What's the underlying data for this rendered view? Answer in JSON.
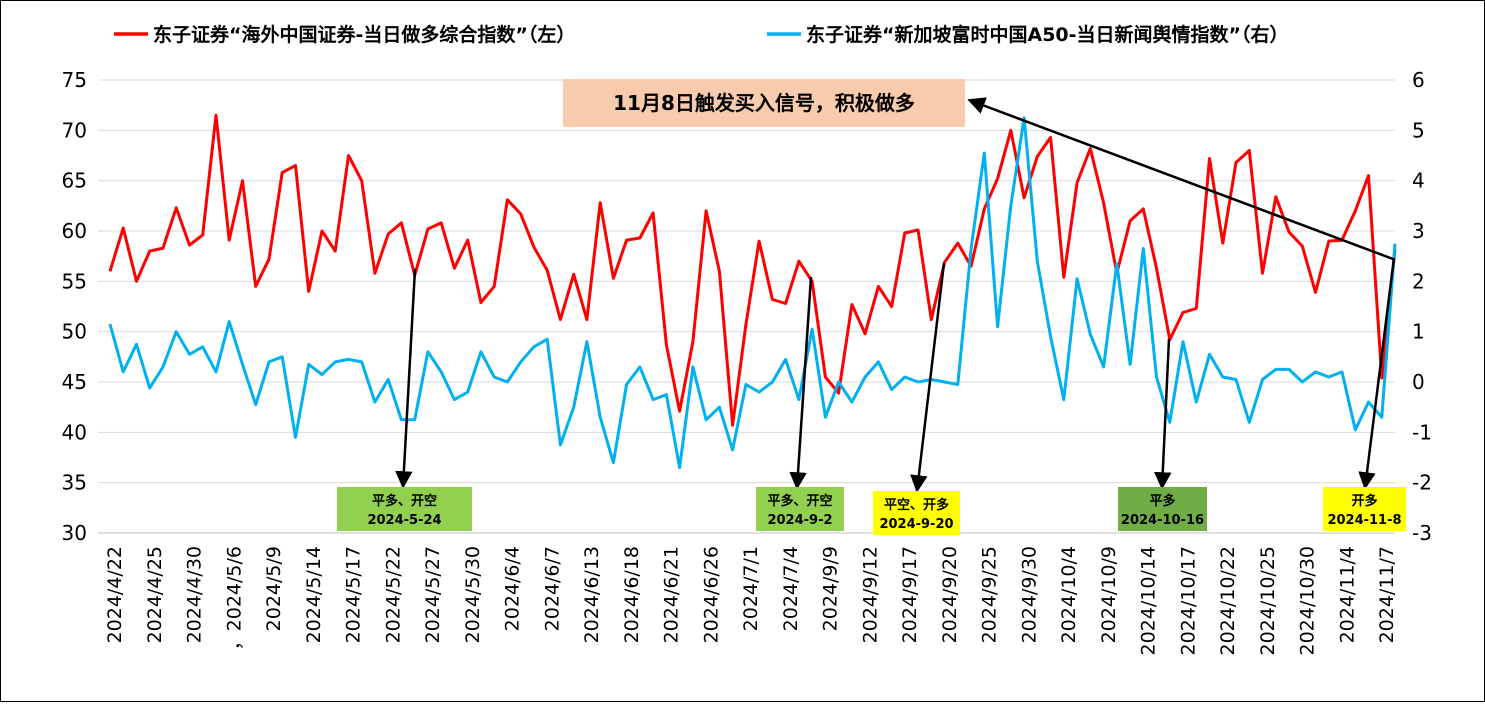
{
  "chart_data": {
    "type": "line",
    "legend": {
      "placement": "top",
      "items": [
        {
          "label": "东子证券“海外中国证券-当日做多综合指数”（左）",
          "color": "#ff0000"
        },
        {
          "label": "东子证券“新加坡富时中国A50-当日新闻舆情指数”（右）",
          "color": "#00b0f0"
        }
      ]
    },
    "x_ticks": [
      "2024/4/22",
      "2024/4/25",
      "2024/4/30",
      "，2024/5/6",
      "2024/5/9",
      "2024/5/14",
      "2024/5/17",
      "2024/5/22",
      "2024/5/27",
      "2024/5/30",
      "2024/6/4",
      "2024/6/7",
      "2024/6/13",
      "2024/6/18",
      "2024/6/21",
      "2024/6/26",
      "2024/7/1",
      "2024/7/4",
      "2024/9/9",
      "2024/9/12",
      "2024/9/17",
      "2024/9/20",
      "2024/9/25",
      "2024/9/30",
      "2024/10/4",
      "2024/10/9",
      "2024/10/14",
      "2024/10/17",
      "2024/10/22",
      "2024/10/25",
      "2024/10/30",
      "2024/11/4",
      "2024/11/7"
    ],
    "y_left": {
      "min": 30,
      "max": 75,
      "ticks": [
        "30",
        "35",
        "40",
        "45",
        "50",
        "55",
        "60",
        "65",
        "70",
        "75"
      ]
    },
    "y_right": {
      "min": -3,
      "max": 6,
      "ticks": [
        "-3",
        "-2",
        "-1",
        "0",
        "1",
        "2",
        "3",
        "4",
        "5",
        "6"
      ]
    },
    "grid": true,
    "series": [
      {
        "name": "东子证券“海外中国证券-当日做多综合指数”（左）",
        "axis": "left",
        "color": "#ff0000",
        "values": [
          56,
          60.3,
          55,
          58,
          58.3,
          62.3,
          58.6,
          59.6,
          71.5,
          59.1,
          65,
          54.5,
          57.2,
          65.8,
          66.5,
          54,
          60,
          58,
          67.5,
          65,
          55.8,
          59.7,
          60.8,
          55.6,
          60.2,
          60.8,
          56.3,
          59.1,
          52.9,
          54.5,
          63.1,
          61.7,
          58.4,
          56.1,
          51.2,
          55.7,
          51.2,
          62.8,
          55.3,
          59.1,
          59.3,
          61.8,
          48.7,
          42.1,
          49,
          62,
          56,
          40.7,
          50.7,
          59,
          53.2,
          52.8,
          57,
          55,
          45.5,
          43.9,
          52.7,
          49.8,
          54.5,
          52.5,
          59.8,
          60.1,
          51.2,
          56.9,
          58.8,
          56.5,
          62.2,
          65.2,
          70,
          63.3,
          67.4,
          69.3,
          55.4,
          64.8,
          68.2,
          62.8,
          55.8,
          61,
          62.2,
          56.3,
          49.2,
          51.9,
          52.3,
          67.2,
          58.8,
          66.8,
          68,
          55.8,
          63.4,
          59.9,
          58.5,
          53.9,
          59,
          59.1,
          62,
          65.5,
          45.4,
          58.2
        ]
      },
      {
        "name": "东子证券“新加坡富时中国A50-当日新闻舆情指数”（右）",
        "axis": "right",
        "color": "#00b0f0",
        "values": [
          1.15,
          0.2,
          0.75,
          -0.12,
          0.3,
          1,
          0.55,
          0.7,
          0.2,
          1.2,
          0.35,
          -0.45,
          0.4,
          0.5,
          -1.1,
          0.35,
          0.15,
          0.4,
          0.45,
          0.4,
          -0.4,
          0.05,
          -0.75,
          -0.75,
          0.6,
          0.2,
          -0.35,
          -0.2,
          0.6,
          0.1,
          0,
          0.4,
          0.7,
          0.85,
          -1.25,
          -0.5,
          0.8,
          -0.7,
          -1.6,
          -0.05,
          0.3,
          -0.35,
          -0.25,
          -1.7,
          0.3,
          -0.75,
          -0.5,
          -1.35,
          -0.05,
          -0.2,
          0,
          0.45,
          -0.35,
          1.05,
          -0.7,
          0,
          -0.4,
          0.1,
          0.4,
          -0.15,
          0.1,
          0,
          0.05,
          0,
          -0.05,
          2.65,
          4.55,
          1.1,
          3.5,
          5.25,
          2.4,
          0.9,
          -0.35,
          2.05,
          0.95,
          0.3,
          2.35,
          0.35,
          2.65,
          0.1,
          -0.8,
          0.8,
          -0.4,
          0.55,
          0.1,
          0.05,
          -0.8,
          0.05,
          0.25,
          0.25,
          0,
          0.2,
          0.1,
          0.2,
          -0.95,
          -0.4,
          -0.7,
          2.75
        ]
      }
    ],
    "callout": {
      "text": "11月8日触发买入信号，积极做多",
      "background": "#f8cbad"
    },
    "annotations": [
      {
        "line1": "平多、开空",
        "line2": "2024-5-24",
        "background": "#92d050"
      },
      {
        "line1": "平多、开空",
        "line2": "2024-9-2",
        "background": "#92d050"
      },
      {
        "line1": "平空、开多",
        "line2": "2024-9-20",
        "background": "#ffff00"
      },
      {
        "line1": "平多",
        "line2": "2024-10-16",
        "background": "#70ad47"
      },
      {
        "line1": "开多",
        "line2": "2024-11-8",
        "background": "#ffff00"
      }
    ]
  }
}
